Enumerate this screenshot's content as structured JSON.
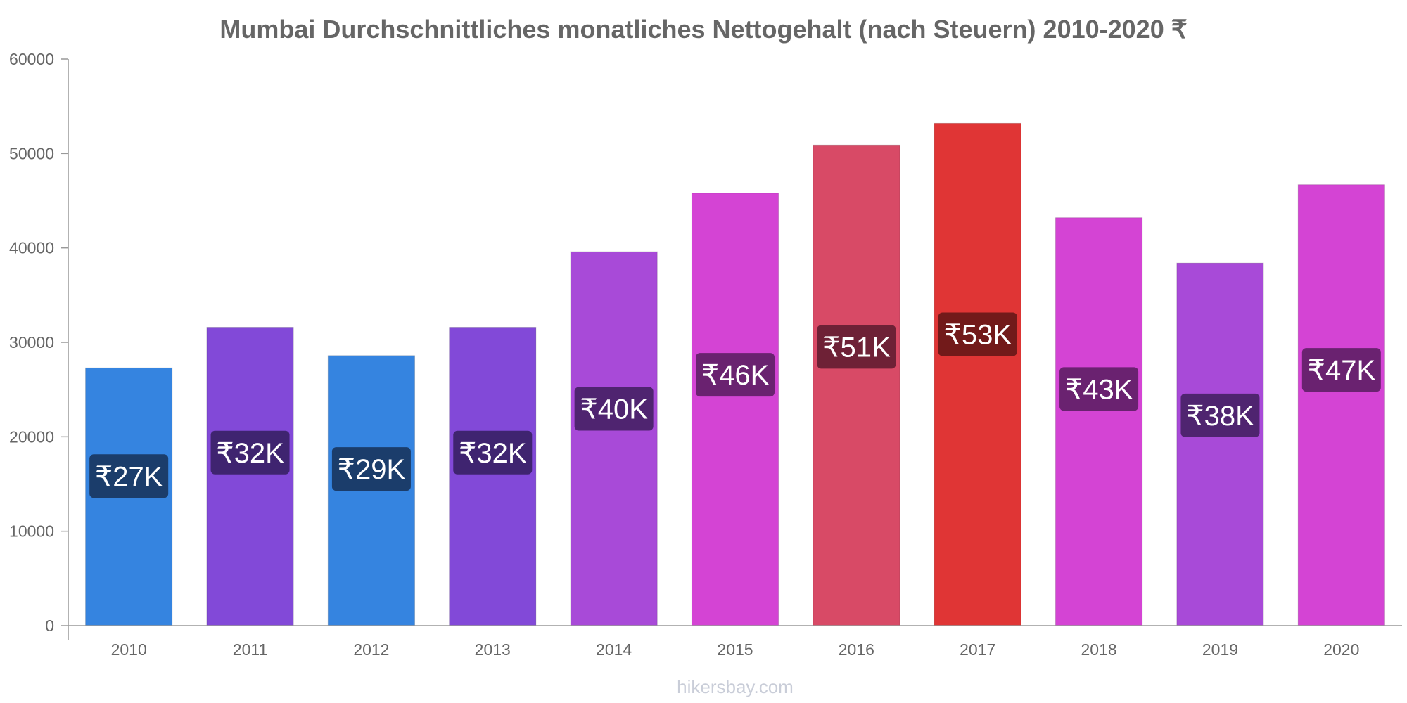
{
  "source": "hikersbay.com",
  "chart_data": {
    "type": "bar",
    "title": "Mumbai Durchschnittliches monatliches Nettogehalt (nach Steuern) 2010-2020 ₹",
    "xlabel": "",
    "ylabel": "",
    "ylim": [
      0,
      60000
    ],
    "yticks": [
      0,
      10000,
      20000,
      30000,
      40000,
      50000,
      60000
    ],
    "grid": false,
    "categories": [
      "2010",
      "2011",
      "2012",
      "2013",
      "2014",
      "2015",
      "2016",
      "2017",
      "2018",
      "2019",
      "2020"
    ],
    "values": [
      27300,
      31600,
      28600,
      31600,
      39600,
      45800,
      50900,
      53200,
      43200,
      38400,
      46700
    ],
    "data_labels": [
      "₹27K",
      "₹32K",
      "₹29K",
      "₹32K",
      "₹40K",
      "₹46K",
      "₹51K",
      "₹53K",
      "₹43K",
      "₹38K",
      "₹47K"
    ],
    "bar_colors": [
      "#3584e0",
      "#8249d8",
      "#3584e0",
      "#8249d8",
      "#a84ad8",
      "#d444d4",
      "#d84a66",
      "#e03535",
      "#d444d4",
      "#a84ad8",
      "#d444d4"
    ],
    "label_box_colors": [
      "#1b3d6b",
      "#3f2470",
      "#1b3d6b",
      "#3f2470",
      "#4f2470",
      "#6a2270",
      "#6e2136",
      "#721a1a",
      "#6a2270",
      "#4f2470",
      "#6a2270"
    ]
  }
}
